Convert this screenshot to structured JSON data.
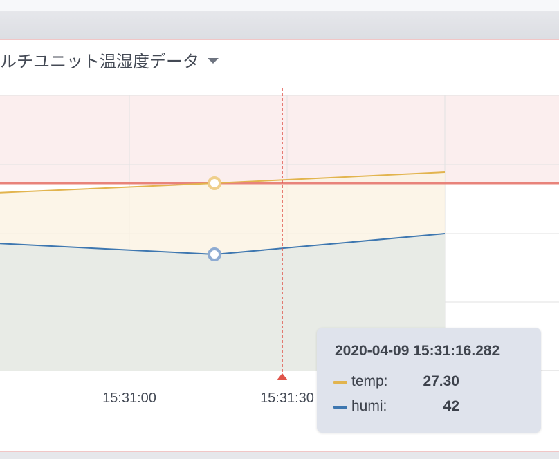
{
  "panel": {
    "title": "ルチユニット温湿度データ"
  },
  "colors": {
    "temp": "#e2b44e",
    "humi": "#3e77b0",
    "threshold": "#e8837a",
    "threshold_band": "#fbeeee",
    "cursor": "#e0544a",
    "grid": "#e2e2e2"
  },
  "chart_data": {
    "type": "area",
    "x_axis": {
      "ticks": [
        "15:31:00",
        "15:31:30"
      ]
    },
    "series": [
      {
        "name": "temp",
        "x": [
          "15:30:20",
          "15:31:16.282",
          "15:32:00"
        ],
        "values": [
          27.0,
          27.3,
          27.65
        ]
      },
      {
        "name": "humi",
        "x": [
          "15:30:20",
          "15:31:16.282",
          "15:32:00"
        ],
        "values": [
          43.1,
          42.0,
          44.1
        ]
      }
    ],
    "threshold": 27.3,
    "cursor_time": "15:31:16.282",
    "grid": true
  },
  "tooltip": {
    "time": "2020-04-09 15:31:16.282",
    "rows": [
      {
        "name": "temp:",
        "value": "27.30"
      },
      {
        "name": "humi:",
        "value": "42"
      }
    ]
  }
}
